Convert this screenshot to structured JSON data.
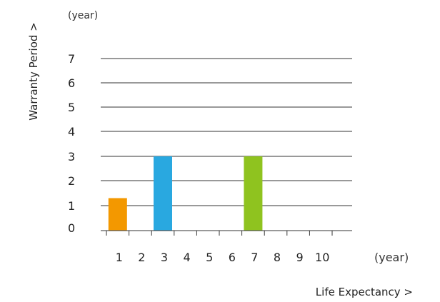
{
  "chart_data": {
    "type": "bar",
    "categories": [
      "1",
      "2",
      "3",
      "4",
      "5",
      "6",
      "7",
      "8",
      "9",
      "10"
    ],
    "values": [
      1.3,
      0,
      3,
      0,
      0,
      0,
      3,
      0,
      0,
      0
    ],
    "colors": [
      "#f39800",
      null,
      "#29a8e0",
      null,
      null,
      null,
      "#8fc31f",
      null,
      null,
      null
    ],
    "ylim": [
      0,
      7
    ],
    "yticks": [
      "0",
      "1",
      "2",
      "3",
      "4",
      "5",
      "6",
      "7"
    ],
    "xlabel": "Life Expectancy >",
    "ylabel": "Warranty Period  >",
    "xunit": "(year)",
    "yunit": "(year)",
    "grid": true
  }
}
